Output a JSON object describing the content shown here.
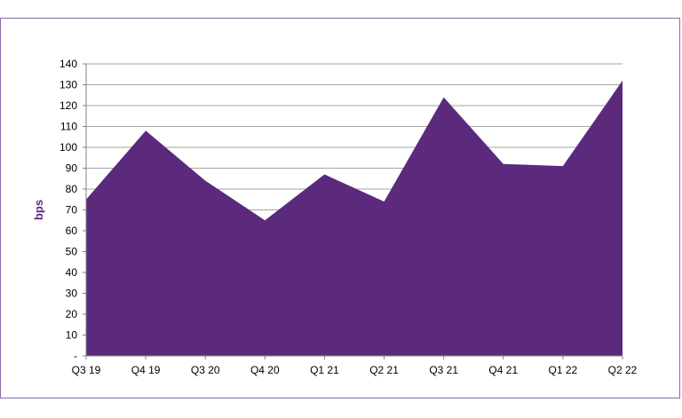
{
  "colors": {
    "area": "#5b2a7c",
    "axis_title": "#5b2a7c",
    "grid": "#a6a6a6",
    "frame": "#8a6aa8"
  },
  "chart_data": {
    "type": "area",
    "title": "",
    "xlabel": "",
    "ylabel": "bps",
    "categories": [
      "Q3 19",
      "Q4 19",
      "Q3 20",
      "Q4 20",
      "Q1 21",
      "Q2 21",
      "Q3 21",
      "Q4 21",
      "Q1 22",
      "Q2 22"
    ],
    "series": [
      {
        "values": [
          75,
          108,
          84,
          65,
          87,
          74,
          124,
          92,
          91,
          132
        ]
      }
    ],
    "ylim": [
      0,
      140
    ],
    "yticks": [
      0,
      10,
      20,
      30,
      40,
      50,
      60,
      70,
      80,
      90,
      100,
      110,
      120,
      130,
      140
    ],
    "zero_tick_label": "-",
    "grid": true,
    "legend": "none"
  }
}
